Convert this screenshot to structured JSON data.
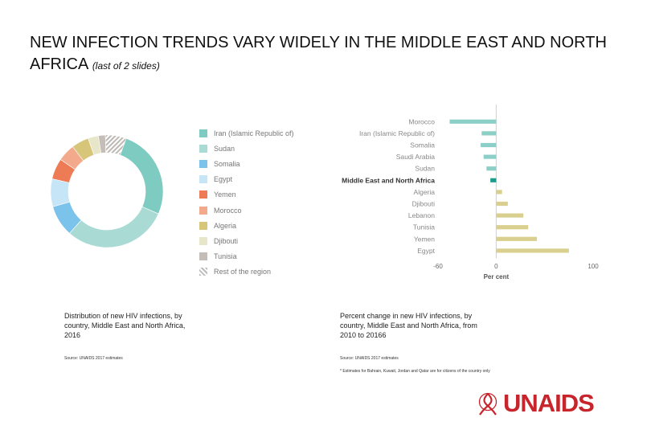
{
  "title": {
    "main": "NEW INFECTION TRENDS VARY WIDELY IN THE MIDDLE EAST AND NORTH AFRICA",
    "sub": "(last of 2 slides)"
  },
  "chart_data": [
    {
      "type": "pie",
      "variant": "donut",
      "title": "Distribution of new HIV infections, by country, Middle East and North Africa, 2016",
      "categories": [
        "Iran (Islamic Republic of)",
        "Sudan",
        "Somalia",
        "Egypt",
        "Yemen",
        "Morocco",
        "Algeria",
        "Djibouti",
        "Tunisia",
        "Rest of the region"
      ],
      "values": [
        26,
        30,
        9,
        8,
        6,
        5,
        5,
        3,
        2,
        6
      ],
      "colors": [
        "#7ecbc1",
        "#a9dbd4",
        "#7cc3ec",
        "#c6e5f6",
        "#ec7b56",
        "#f3a98c",
        "#d7c67a",
        "#e8e6c8",
        "#c4bdb8",
        "#d6d2cf"
      ],
      "hatched": [
        false,
        false,
        false,
        false,
        false,
        false,
        false,
        false,
        false,
        true
      ],
      "legend": "right"
    },
    {
      "type": "bar",
      "orientation": "horizontal",
      "title": "Percent change in new HIV infections, by country, Middle East and North Africa, from 2010 to 20166",
      "categories": [
        "Morocco",
        "Iran (Islamic Republic of)",
        "Somalia",
        "Saudi Arabia",
        "Sudan",
        "Middle East and North Africa",
        "Algeria",
        "Djibouti",
        "Lebanon",
        "Tunisia",
        "Yemen",
        "Egypt"
      ],
      "values": [
        -48,
        -15,
        -16,
        -13,
        -10,
        -6,
        6,
        12,
        28,
        33,
        42,
        75
      ],
      "highlight": "Middle East and North Africa",
      "xlim": [
        -60,
        100
      ],
      "xticks": [
        "-60",
        "0",
        "100"
      ],
      "xlabel": "Per cent",
      "colors": {
        "negative": "#8ccfc6",
        "positive": "#d9cf8e",
        "highlight": "#1e9a8f"
      }
    }
  ],
  "captions": {
    "left": "Distribution of new HIV infections, by country, Middle East and North Africa, 2016",
    "right": "Percent change in new HIV infections, by country, Middle East and North Africa, from 2010 to 20166"
  },
  "sources": {
    "left": "Source: UNAIDS 2017 estimates",
    "right": "Source: UNAIDS 2017 estimates",
    "footnote": "* Estimates for Bahrain, Kuwait, Jordan and Qatar are for citizens of the country only"
  },
  "logo": {
    "text": "UNAIDS",
    "color": "#c8242b"
  }
}
